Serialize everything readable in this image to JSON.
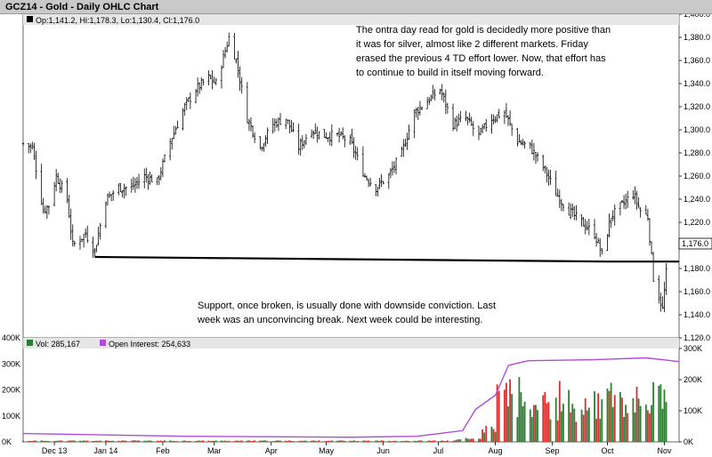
{
  "title": "GCZ14 - Gold - Daily OHLC Chart",
  "ohlc_summary": "Op:1,141.2, Hi:1,178.3, Lo:1,130.4, Cl:1,176.0",
  "last_price_tag": "1,176.0",
  "annotation_top": [
    "The ontra day read for gold is decidedly more positive than",
    "it was for silver, almost like 2 different markets.  Friday",
    "erased the previous 4 TD effort lower.  Now, that effort has",
    "to continue to build in itself moving forward."
  ],
  "annotation_bottom": [
    "Support, once broken, is usually done with downside conviction.  Last",
    "week was an unconvincing break.  Next week could be interesting."
  ],
  "volume_legend": {
    "vol_label": "Vol: 285,167",
    "oi_label": "Open Interest: 254,633"
  },
  "colors": {
    "price_bar": "#000000",
    "support_line": "#000000",
    "vol_up": "#2e7d32",
    "vol_down": "#d32f2f",
    "open_interest": "#b24bdb",
    "title_bg": "#c9c9c9"
  },
  "chart_data": [
    {
      "type": "ohlc",
      "x_axis_months": [
        "Dec 13",
        "Jan 14",
        "Feb",
        "Mar",
        "Apr",
        "May",
        "Jun",
        "Jul",
        "Aug",
        "Sep",
        "Oct",
        "Nov"
      ],
      "ylim": [
        1120,
        1400
      ],
      "y_ticks": [
        "1,400.0",
        "1,380.0",
        "1,360.0",
        "1,340.0",
        "1,320.0",
        "1,300.0",
        "1,280.0",
        "1,260.0",
        "1,240.0",
        "1,220.0",
        "1,200.0",
        "1,180.0",
        "1,160.0",
        "1,140.0",
        "1,120.0"
      ],
      "y_tick_values": [
        1400,
        1380,
        1360,
        1340,
        1320,
        1300,
        1280,
        1260,
        1240,
        1220,
        1200,
        1180,
        1160,
        1140,
        1120
      ],
      "close_path": [
        [
          "2013-11-22",
          1288
        ],
        [
          "2013-11-27",
          1285
        ],
        [
          "2013-12-03",
          1230
        ],
        [
          "2013-12-06",
          1235
        ],
        [
          "2013-12-10",
          1260
        ],
        [
          "2013-12-16",
          1240
        ],
        [
          "2013-12-19",
          1200
        ],
        [
          "2013-12-26",
          1210
        ],
        [
          "2013-12-31",
          1195
        ],
        [
          "2014-01-06",
          1240
        ],
        [
          "2014-01-13",
          1250
        ],
        [
          "2014-01-20",
          1250
        ],
        [
          "2014-01-27",
          1260
        ],
        [
          "2014-02-03",
          1255
        ],
        [
          "2014-02-10",
          1290
        ],
        [
          "2014-02-18",
          1320
        ],
        [
          "2014-02-24",
          1335
        ],
        [
          "2014-03-03",
          1345
        ],
        [
          "2014-03-07",
          1340
        ],
        [
          "2014-03-14",
          1380
        ],
        [
          "2014-03-18",
          1360
        ],
        [
          "2014-03-24",
          1310
        ],
        [
          "2014-03-31",
          1285
        ],
        [
          "2014-04-07",
          1305
        ],
        [
          "2014-04-14",
          1310
        ],
        [
          "2014-04-21",
          1285
        ],
        [
          "2014-04-28",
          1300
        ],
        [
          "2014-05-05",
          1295
        ],
        [
          "2014-05-12",
          1295
        ],
        [
          "2014-05-19",
          1290
        ],
        [
          "2014-05-27",
          1260
        ],
        [
          "2014-06-02",
          1250
        ],
        [
          "2014-06-09",
          1260
        ],
        [
          "2014-06-16",
          1280
        ],
        [
          "2014-06-23",
          1315
        ],
        [
          "2014-06-30",
          1325
        ],
        [
          "2014-07-07",
          1335
        ],
        [
          "2014-07-14",
          1305
        ],
        [
          "2014-07-21",
          1310
        ],
        [
          "2014-07-28",
          1295
        ],
        [
          "2014-08-04",
          1310
        ],
        [
          "2014-08-11",
          1315
        ],
        [
          "2014-08-18",
          1290
        ],
        [
          "2014-08-25",
          1285
        ],
        [
          "2014-09-02",
          1265
        ],
        [
          "2014-09-08",
          1245
        ],
        [
          "2014-09-15",
          1230
        ],
        [
          "2014-09-22",
          1220
        ],
        [
          "2014-09-29",
          1210
        ],
        [
          "2014-10-03",
          1192
        ],
        [
          "2014-10-08",
          1225
        ],
        [
          "2014-10-14",
          1235
        ],
        [
          "2014-10-20",
          1245
        ],
        [
          "2014-10-24",
          1230
        ],
        [
          "2014-10-28",
          1225
        ],
        [
          "2014-10-31",
          1172
        ],
        [
          "2014-11-05",
          1145
        ],
        [
          "2014-11-07",
          1176
        ]
      ],
      "support_line": [
        [
          "2013-12-31",
          1190
        ],
        [
          "2014-10-06",
          1186
        ],
        [
          "2014-11-14",
          1186
        ]
      ]
    },
    {
      "type": "bar+line",
      "series": [
        {
          "name": "Vol",
          "type": "bar",
          "ylim": [
            0,
            400000
          ],
          "y_ticks": [
            "400K",
            "300K",
            "200K",
            "100K",
            "0K"
          ]
        },
        {
          "name": "Open Interest",
          "type": "line",
          "ylim": [
            0,
            300000
          ],
          "y_ticks": [
            "300K",
            "200K",
            "100K",
            "0K"
          ],
          "values": [
            [
              0,
              0.09
            ],
            [
              0.25,
              0.06
            ],
            [
              0.5,
              0.05
            ],
            [
              0.6,
              0.06
            ],
            [
              0.67,
              0.12
            ],
            [
              0.69,
              0.35
            ],
            [
              0.72,
              0.5
            ],
            [
              0.74,
              0.82
            ],
            [
              0.77,
              0.87
            ],
            [
              0.87,
              0.88
            ],
            [
              0.95,
              0.9
            ],
            [
              1.0,
              0.86
            ]
          ]
        }
      ]
    }
  ]
}
